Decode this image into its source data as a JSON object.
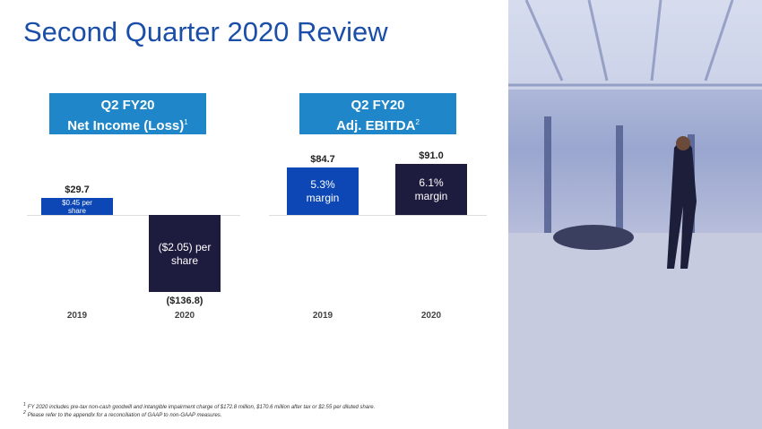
{
  "title": "Second Quarter 2020 Review",
  "chart_data": [
    {
      "type": "bar",
      "title": "Q2 FY20",
      "subtitle": "Net Income (Loss)",
      "subtitle_note": "1",
      "categories": [
        "2019",
        "2020"
      ],
      "values": [
        29.7,
        -136.8
      ],
      "value_labels": [
        "$29.7",
        "($136.8)"
      ],
      "inner_labels": [
        "$0.45 per share",
        "($2.05) per share"
      ],
      "colors": [
        "#0d47b5",
        "#1d1b3e"
      ]
    },
    {
      "type": "bar",
      "title": "Q2 FY20",
      "subtitle": "Adj. EBITDA",
      "subtitle_note": "2",
      "categories": [
        "2019",
        "2020"
      ],
      "values": [
        84.7,
        91.0
      ],
      "value_labels": [
        "$84.7",
        "$91.0"
      ],
      "inner_labels": [
        "5.3% margin",
        "6.1% margin"
      ],
      "colors": [
        "#0d47b5",
        "#1d1b3e"
      ]
    }
  ],
  "footnotes": [
    {
      "marker": "1",
      "text": "FY 2020 includes pre-tax non-cash goodwill and intangible impairment charge of $172.8 million, $170.6 million after tax or $2.55 per diluted  share."
    },
    {
      "marker": "2",
      "text": "Please refer to the appendix for a reconciliation of GAAP to non-GAAP measures."
    }
  ]
}
